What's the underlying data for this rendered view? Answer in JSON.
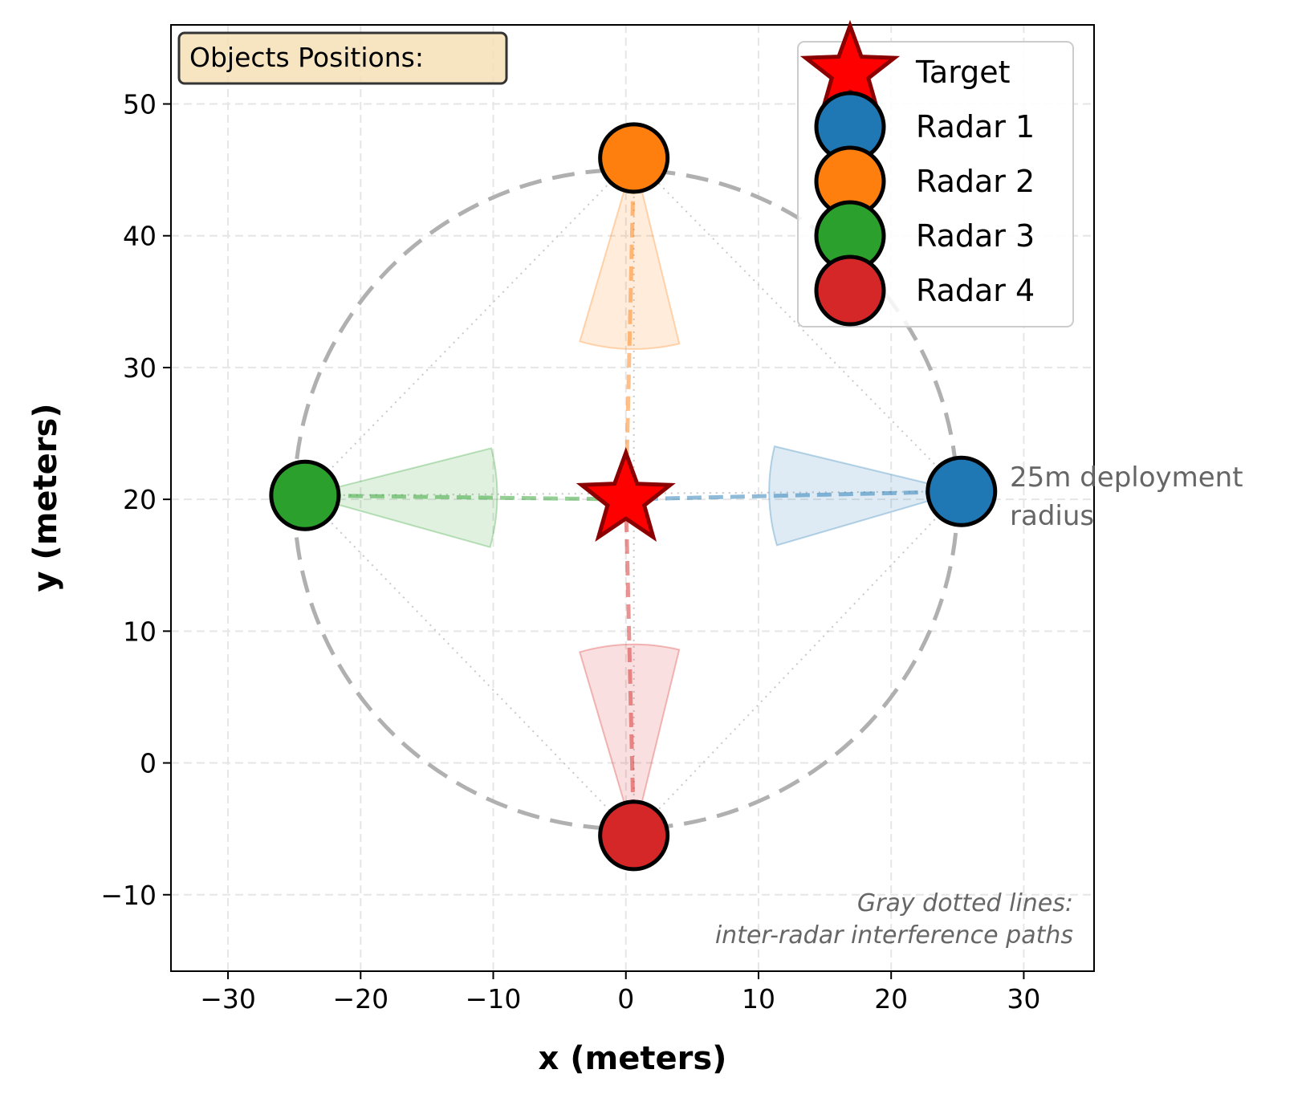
{
  "chart_data": {
    "type": "scatter",
    "title": "",
    "xlabel": "x (meters)",
    "ylabel": "y (meters)",
    "xlim": [
      -34.3,
      35.3
    ],
    "ylim": [
      -15.8,
      56.0
    ],
    "xticks": [
      -30,
      -20,
      -10,
      0,
      10,
      20,
      30
    ],
    "yticks": [
      -10,
      0,
      10,
      20,
      30,
      40,
      50
    ],
    "xtick_labels": [
      "−30",
      "−20",
      "−10",
      "0",
      "10",
      "20",
      "30"
    ],
    "ytick_labels": [
      "−10",
      "0",
      "10",
      "20",
      "30",
      "40",
      "50"
    ],
    "grid": true,
    "legend_position": "top-right",
    "target": {
      "name": "Target",
      "x": 0.0,
      "y": 20.0,
      "color": "#ff0000",
      "edge": "#8b0000"
    },
    "radars": [
      {
        "name": "Radar 1",
        "x": 25.3,
        "y": 20.6,
        "color": "#1f77b4"
      },
      {
        "name": "Radar 2",
        "x": 0.6,
        "y": 45.9,
        "color": "#ff7f0e"
      },
      {
        "name": "Radar 3",
        "x": -24.2,
        "y": 20.3,
        "color": "#2ca02c"
      },
      {
        "name": "Radar 4",
        "x": 0.6,
        "y": -5.5,
        "color": "#d62728"
      }
    ],
    "deployment_circle": {
      "center": [
        0.0,
        20.0
      ],
      "radius": 25.0,
      "color": "#b0b0b0"
    },
    "annotations": {
      "objects_box": "Objects Positions:",
      "radius_label_line1": "25m deployment",
      "radius_label_line2": "radius",
      "note_line1": "Gray dotted lines:",
      "note_line2": "inter-radar interference paths"
    }
  }
}
